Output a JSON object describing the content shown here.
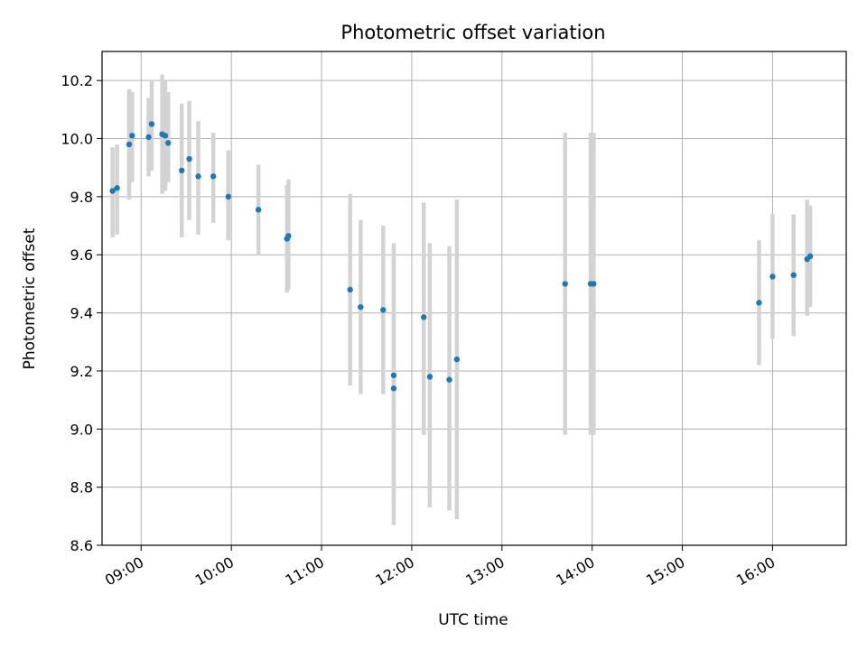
{
  "chart_data": {
    "type": "scatter",
    "title": "Photometric offset variation",
    "xlabel": "UTC time",
    "ylabel": "Photometric offset",
    "xlim": [
      "08:34",
      "16:49"
    ],
    "ylim": [
      8.6,
      10.3
    ],
    "x_ticks": [
      "09:00",
      "10:00",
      "11:00",
      "12:00",
      "13:00",
      "14:00",
      "15:00",
      "16:00"
    ],
    "y_ticks": [
      "8.6",
      "8.8",
      "9.0",
      "9.2",
      "9.4",
      "9.6",
      "9.8",
      "10.0",
      "10.2"
    ],
    "grid": true,
    "marker_color": "#1f77b4",
    "errorbar_color": "#d3d3d3",
    "points": [
      {
        "t": "08:41",
        "y": 9.82,
        "lo": 9.66,
        "hi": 9.97
      },
      {
        "t": "08:44",
        "y": 9.83,
        "lo": 9.67,
        "hi": 9.98
      },
      {
        "t": "08:52",
        "y": 9.98,
        "lo": 9.79,
        "hi": 10.17
      },
      {
        "t": "08:54",
        "y": 10.01,
        "lo": 9.85,
        "hi": 10.16
      },
      {
        "t": "09:05",
        "y": 10.005,
        "lo": 9.87,
        "hi": 10.14
      },
      {
        "t": "09:07",
        "y": 10.05,
        "lo": 9.89,
        "hi": 10.2
      },
      {
        "t": "09:14",
        "y": 10.015,
        "lo": 9.81,
        "hi": 10.22
      },
      {
        "t": "09:16",
        "y": 10.01,
        "lo": 9.82,
        "hi": 10.2
      },
      {
        "t": "09:18",
        "y": 9.985,
        "lo": 9.85,
        "hi": 10.16
      },
      {
        "t": "09:27",
        "y": 9.89,
        "lo": 9.66,
        "hi": 10.12
      },
      {
        "t": "09:32",
        "y": 9.93,
        "lo": 9.72,
        "hi": 10.13
      },
      {
        "t": "09:38",
        "y": 9.87,
        "lo": 9.67,
        "hi": 10.06
      },
      {
        "t": "09:48",
        "y": 9.87,
        "lo": 9.71,
        "hi": 10.02
      },
      {
        "t": "09:58",
        "y": 9.8,
        "lo": 9.65,
        "hi": 9.96
      },
      {
        "t": "10:18",
        "y": 9.755,
        "lo": 9.6,
        "hi": 9.91
      },
      {
        "t": "10:37",
        "y": 9.655,
        "lo": 9.47,
        "hi": 9.84
      },
      {
        "t": "10:38",
        "y": 9.665,
        "lo": 9.48,
        "hi": 9.86
      },
      {
        "t": "11:19",
        "y": 9.48,
        "lo": 9.15,
        "hi": 9.81
      },
      {
        "t": "11:26",
        "y": 9.42,
        "lo": 9.12,
        "hi": 9.72
      },
      {
        "t": "11:41",
        "y": 9.41,
        "lo": 9.12,
        "hi": 9.7
      },
      {
        "t": "11:48",
        "y": 9.185,
        "lo": 8.73,
        "hi": 9.64
      },
      {
        "t": "11:48",
        "y": 9.14,
        "lo": 8.67,
        "hi": 9.62
      },
      {
        "t": "12:08",
        "y": 9.385,
        "lo": 8.98,
        "hi": 9.78
      },
      {
        "t": "12:12",
        "y": 9.18,
        "lo": 8.73,
        "hi": 9.64
      },
      {
        "t": "12:25",
        "y": 9.17,
        "lo": 8.72,
        "hi": 9.63
      },
      {
        "t": "12:30",
        "y": 9.24,
        "lo": 8.69,
        "hi": 9.79
      },
      {
        "t": "13:42",
        "y": 9.5,
        "lo": 8.98,
        "hi": 10.02
      },
      {
        "t": "13:59",
        "y": 9.5,
        "lo": 8.98,
        "hi": 10.02
      },
      {
        "t": "14:01",
        "y": 9.5,
        "lo": 8.98,
        "hi": 10.02
      },
      {
        "t": "15:51",
        "y": 9.435,
        "lo": 9.22,
        "hi": 9.65
      },
      {
        "t": "16:00",
        "y": 9.525,
        "lo": 9.31,
        "hi": 9.74
      },
      {
        "t": "16:14",
        "y": 9.53,
        "lo": 9.32,
        "hi": 9.74
      },
      {
        "t": "16:23",
        "y": 9.585,
        "lo": 9.39,
        "hi": 9.79
      },
      {
        "t": "16:25",
        "y": 9.595,
        "lo": 9.42,
        "hi": 9.77
      }
    ]
  }
}
